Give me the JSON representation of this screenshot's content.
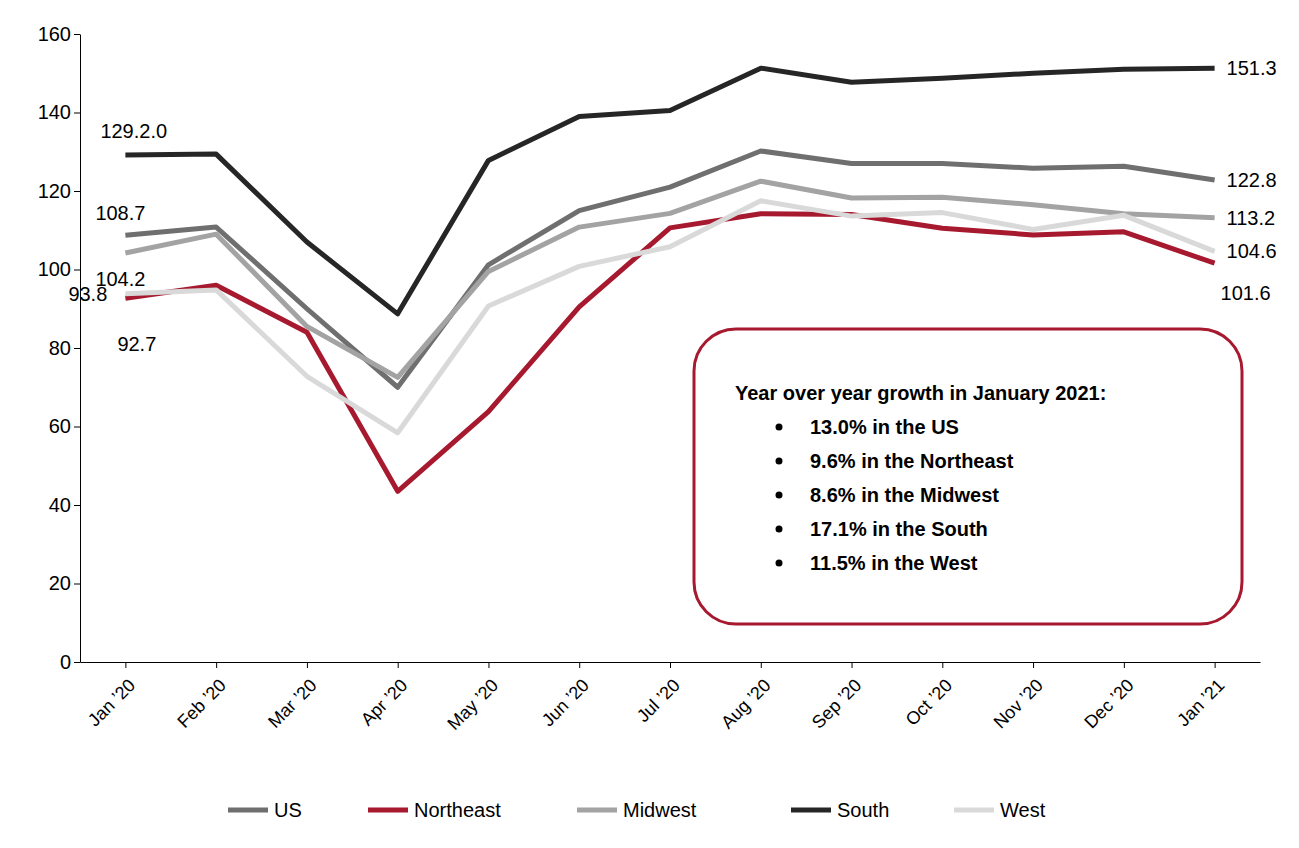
{
  "chart_data": {
    "type": "line",
    "categories": [
      "Jan ’20",
      "Feb ’20",
      "Mar ’20",
      "Apr ’20",
      "May ’20",
      "Jun ’20",
      "Jul ’20",
      "Aug ’20",
      "Sep ’20",
      "Oct ’20",
      "Nov ’20",
      "Dec ’20",
      "Jan ’21"
    ],
    "series": [
      {
        "name": "US",
        "color": "#6f6f6f",
        "values": [
          108.7,
          110.8,
          90.0,
          70.0,
          101.2,
          115.0,
          121.0,
          130.2,
          127.0,
          127.0,
          125.8,
          126.3,
          122.8
        ],
        "value_labels": [
          "108.7",
          null,
          null,
          null,
          null,
          null,
          null,
          null,
          null,
          null,
          null,
          null,
          "122.8"
        ]
      },
      {
        "name": "Northeast",
        "color": "#a6192e",
        "values": [
          92.7,
          96.0,
          84.0,
          43.5,
          63.8,
          90.5,
          110.6,
          114.2,
          114.0,
          110.5,
          108.8,
          109.6,
          101.6
        ],
        "value_labels": [
          "92.7",
          null,
          null,
          null,
          null,
          null,
          null,
          null,
          null,
          null,
          null,
          null,
          "101.6"
        ]
      },
      {
        "name": "Midwest",
        "color": "#a3a3a3",
        "values": [
          104.2,
          109.0,
          85.5,
          72.5,
          99.5,
          110.8,
          114.3,
          122.5,
          118.2,
          118.4,
          116.5,
          114.2,
          113.2
        ],
        "value_labels": [
          "104.2",
          null,
          null,
          null,
          null,
          null,
          null,
          null,
          null,
          null,
          null,
          null,
          "113.2"
        ]
      },
      {
        "name": "South",
        "color": "#262626",
        "values": [
          129.2,
          129.4,
          107.0,
          88.7,
          127.8,
          139.0,
          140.5,
          151.3,
          147.7,
          148.7,
          150.0,
          151.0,
          151.3
        ],
        "value_labels": [
          "129.2.0",
          null,
          null,
          null,
          null,
          null,
          null,
          null,
          null,
          null,
          null,
          null,
          "151.3"
        ]
      },
      {
        "name": "West",
        "color": "#d9d9d9",
        "values": [
          93.8,
          94.8,
          72.8,
          58.4,
          90.7,
          100.8,
          105.8,
          117.5,
          113.6,
          114.5,
          110.2,
          113.8,
          104.6
        ],
        "value_labels": [
          "93.8",
          null,
          null,
          null,
          null,
          null,
          null,
          null,
          null,
          null,
          null,
          null,
          "104.6"
        ]
      }
    ],
    "ylim": [
      0,
      160
    ],
    "yticks": [
      0,
      20,
      40,
      60,
      80,
      100,
      120,
      140,
      160
    ],
    "grid": false,
    "legend": "bottom",
    "data_labels": true,
    "text_box": {
      "title": "Year over year growth in January 2021:",
      "items": [
        "13.0% in the US",
        "9.6% in the Northeast",
        "8.6% in the Midwest",
        "17.1% in the South",
        "11.5% in the West"
      ]
    }
  }
}
